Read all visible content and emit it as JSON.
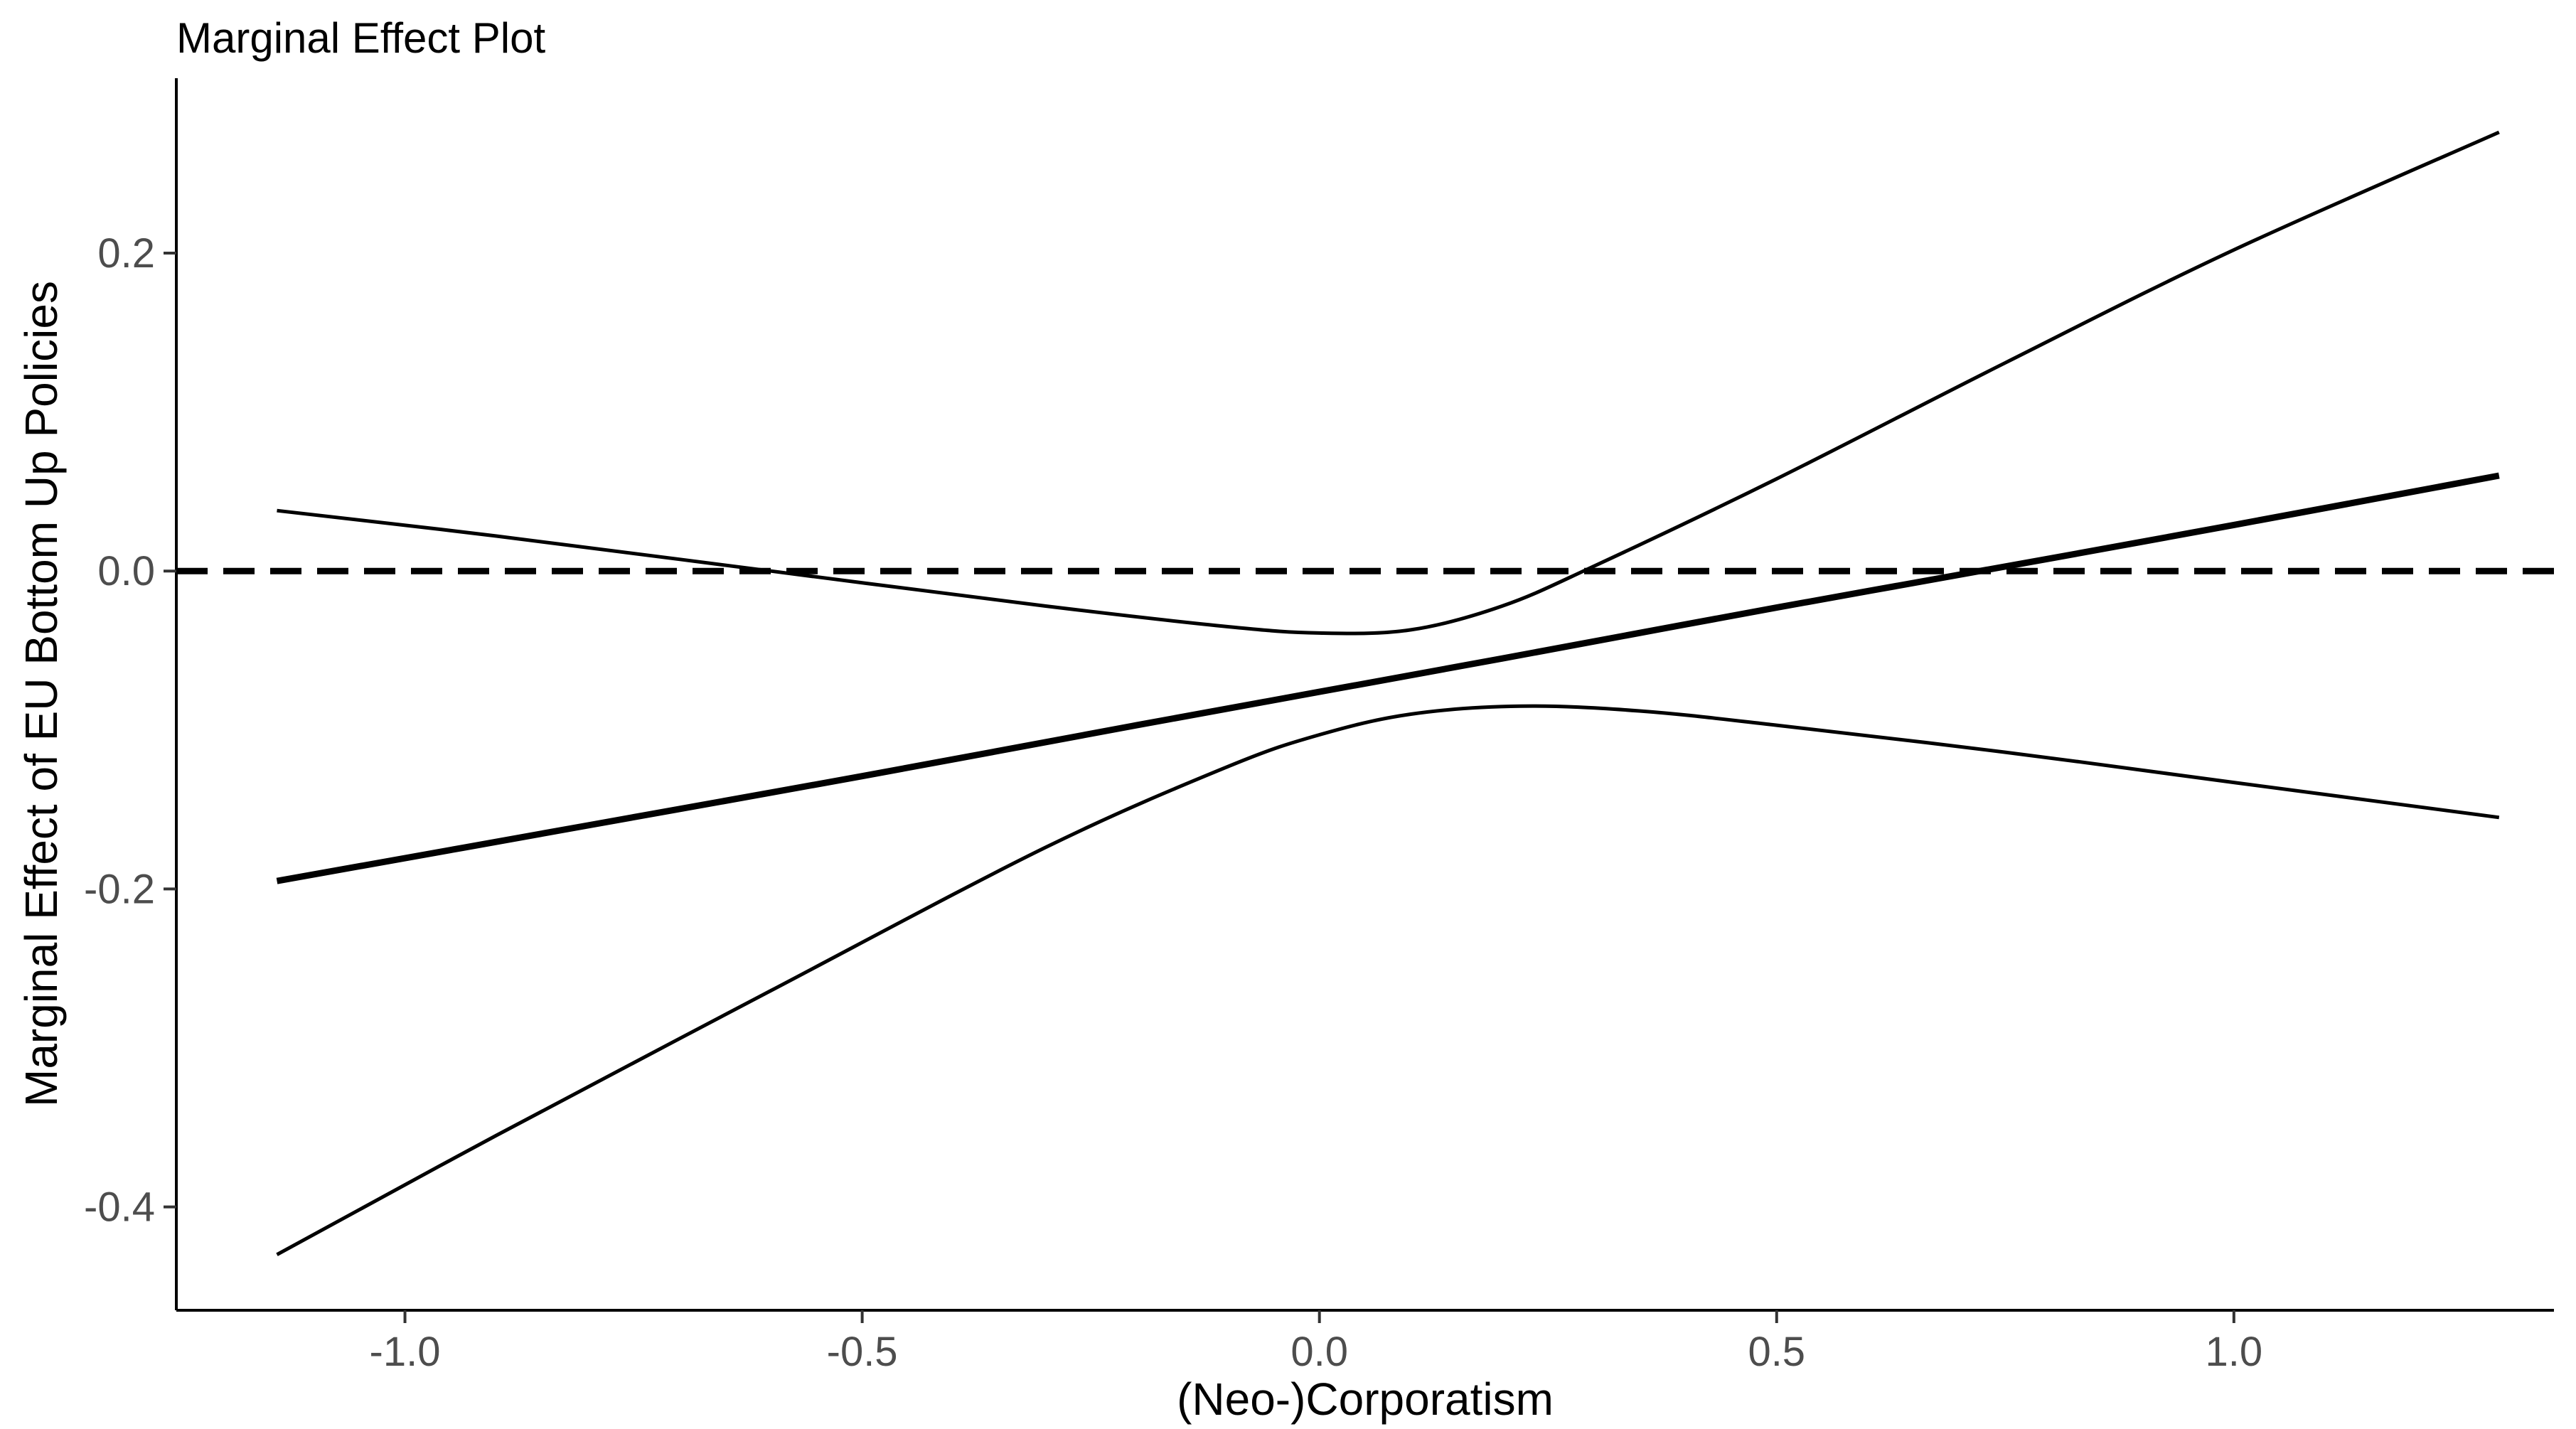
{
  "chart_data": {
    "type": "line",
    "title": "Marginal Effect Plot",
    "xlabel": "(Neo-)Corporatism",
    "ylabel": "Marginal Effect of EU Bottom Up Policies",
    "xlim": [
      -1.25,
      1.35
    ],
    "ylim": [
      -0.465,
      0.31
    ],
    "xticks": [
      -1.0,
      -0.5,
      0.0,
      0.5,
      1.0
    ],
    "xtick_labels": [
      "-1.0",
      "-0.5",
      "0.0",
      "0.5",
      "1.0"
    ],
    "yticks": [
      -0.4,
      -0.2,
      0.0,
      0.2
    ],
    "ytick_labels": [
      "-0.4",
      "-0.2",
      "0.0",
      "0.2"
    ],
    "reference_line": {
      "y": 0.0,
      "style": "dashed"
    },
    "grid": false,
    "legend": "none",
    "series": [
      {
        "role": "estimate",
        "x": [
          -1.14,
          -0.8,
          -0.5,
          -0.2,
          0.0,
          0.2,
          0.5,
          0.8,
          1.0,
          1.29
        ],
        "y": [
          -0.195,
          -0.16,
          -0.129,
          -0.097,
          -0.076,
          -0.055,
          -0.023,
          0.008,
          0.029,
          0.06
        ]
      },
      {
        "role": "upper-bound",
        "x": [
          -1.14,
          -0.9,
          -0.6,
          -0.3,
          -0.1,
          0.0,
          0.1,
          0.2,
          0.3,
          0.5,
          0.75,
          1.0,
          1.29
        ],
        "y": [
          0.038,
          0.022,
          0.0,
          -0.022,
          -0.035,
          -0.039,
          -0.037,
          -0.022,
          0.003,
          0.058,
          0.131,
          0.202,
          0.276
        ]
      },
      {
        "role": "lower-bound",
        "x": [
          -1.14,
          -0.9,
          -0.6,
          -0.3,
          -0.1,
          0.0,
          0.1,
          0.22,
          0.35,
          0.5,
          0.75,
          1.0,
          1.29
        ],
        "y": [
          -0.43,
          -0.355,
          -0.264,
          -0.174,
          -0.123,
          -0.103,
          -0.09,
          -0.085,
          -0.088,
          -0.097,
          -0.114,
          -0.133,
          -0.155
        ]
      }
    ]
  }
}
